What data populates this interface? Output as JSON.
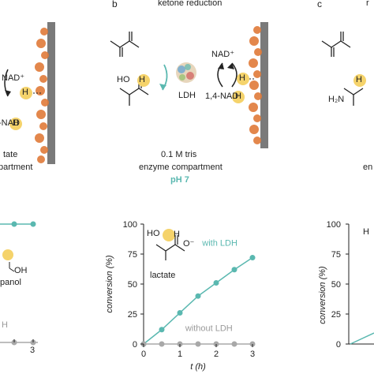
{
  "panels": {
    "a": {
      "label_partial": "",
      "nad_ox": "NAD⁺",
      "h": "H",
      "nadh_prefix": "-NAD",
      "compartment_line1": "tate",
      "compartment_line2": "partment",
      "chem_text": "panol",
      "oh_label": "OH",
      "legend_partial": "H",
      "x_tick": "3"
    },
    "b": {
      "letter": "b",
      "title": "ketone reduction",
      "nad_ox": "NAD⁺",
      "nadh_prefix": "1,4-NAD",
      "h": "H",
      "enzyme": "LDH",
      "ho": "HO",
      "buffer": "0.1 M tris",
      "compartment": "enzyme compartment",
      "ph": "pH 7",
      "product": "lactate",
      "o_minus": "O⁻"
    },
    "c": {
      "letter": "c",
      "title_partial": "r",
      "h2n": "H₂N",
      "h": "H",
      "compartment_partial": "en",
      "y_label_partial": "H"
    }
  },
  "chart_data": {
    "type": "line",
    "xlabel": "t (h)",
    "ylabel": "conversion (%)",
    "xlim": [
      0,
      3
    ],
    "ylim": [
      0,
      100
    ],
    "x_ticks": [
      "0",
      "1",
      "2",
      "3"
    ],
    "y_ticks": [
      "0",
      "25",
      "50",
      "75",
      "100"
    ],
    "series": [
      {
        "name": "with LDH",
        "color": "#5ab8b0",
        "x": [
          0,
          0.5,
          1,
          1.5,
          2,
          2.5,
          3
        ],
        "y": [
          0,
          12,
          26,
          40,
          51,
          62,
          72
        ]
      },
      {
        "name": "without LDH",
        "color": "#a8a8a8",
        "x": [
          0,
          0.5,
          1,
          1.5,
          2,
          2.5,
          3
        ],
        "y": [
          0,
          0,
          0,
          0,
          0,
          0,
          0
        ]
      }
    ]
  }
}
